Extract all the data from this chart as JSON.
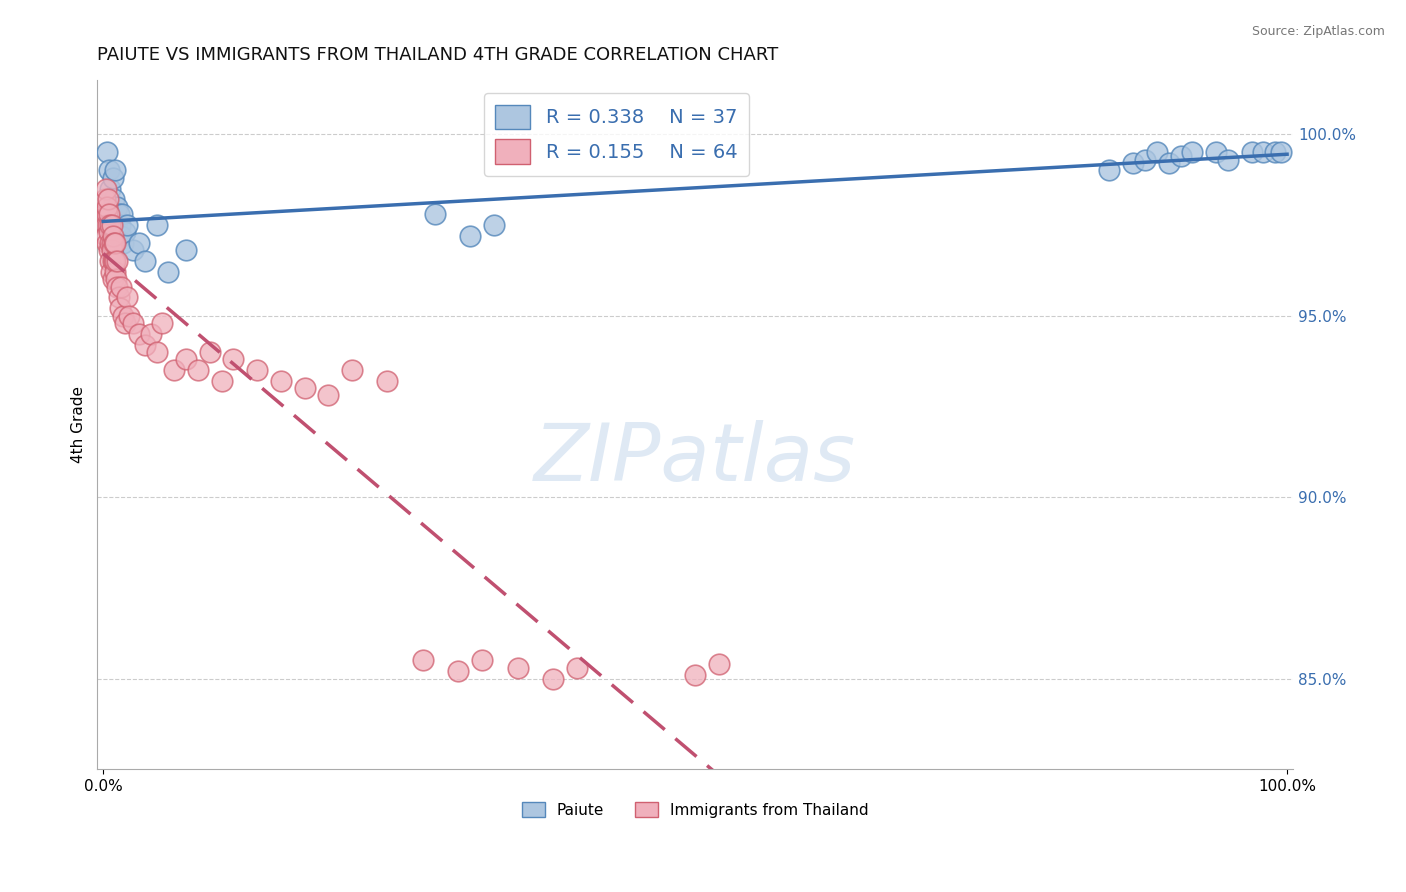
{
  "title": "PAIUTE VS IMMIGRANTS FROM THAILAND 4TH GRADE CORRELATION CHART",
  "source": "Source: ZipAtlas.com",
  "ylabel": "4th Grade",
  "watermark": "ZIPatlas",
  "blue_R": 0.338,
  "blue_N": 37,
  "pink_R": 0.155,
  "pink_N": 64,
  "blue_line_color": "#3a6eaf",
  "pink_line_color": "#c05070",
  "blue_scatter_face": "#adc6e0",
  "blue_scatter_edge": "#5588bb",
  "pink_scatter_face": "#f0b0bc",
  "pink_scatter_edge": "#d06070",
  "blue_points_x": [
    0.3,
    0.5,
    0.6,
    0.8,
    0.9,
    1.0,
    1.1,
    1.2,
    1.3,
    1.4,
    1.5,
    1.6,
    1.7,
    1.8,
    2.0,
    2.5,
    3.0,
    3.5,
    4.5,
    5.5,
    7.0,
    28.0,
    31.0,
    33.0,
    85.0,
    87.0,
    88.0,
    89.0,
    90.0,
    91.0,
    92.0,
    94.0,
    95.0,
    97.0,
    98.0,
    99.0,
    99.5
  ],
  "blue_points_y": [
    99.5,
    99.0,
    98.5,
    98.8,
    98.2,
    99.0,
    97.5,
    98.0,
    97.8,
    97.5,
    97.2,
    97.8,
    97.0,
    97.3,
    97.5,
    96.8,
    97.0,
    96.5,
    97.5,
    96.2,
    96.8,
    97.8,
    97.2,
    97.5,
    99.0,
    99.2,
    99.3,
    99.5,
    99.2,
    99.4,
    99.5,
    99.5,
    99.3,
    99.5,
    99.5,
    99.5,
    99.5
  ],
  "pink_points_x": [
    0.1,
    0.15,
    0.2,
    0.2,
    0.25,
    0.3,
    0.3,
    0.35,
    0.4,
    0.4,
    0.45,
    0.5,
    0.5,
    0.55,
    0.6,
    0.6,
    0.65,
    0.7,
    0.7,
    0.75,
    0.8,
    0.8,
    0.85,
    0.9,
    0.9,
    0.95,
    1.0,
    1.0,
    1.1,
    1.2,
    1.2,
    1.3,
    1.4,
    1.5,
    1.7,
    1.8,
    2.0,
    2.2,
    2.5,
    3.0,
    3.5,
    4.0,
    4.5,
    5.0,
    6.0,
    7.0,
    8.0,
    9.0,
    10.0,
    11.0,
    13.0,
    15.0,
    17.0,
    19.0,
    21.0,
    24.0,
    27.0,
    30.0,
    32.0,
    35.0,
    38.0,
    40.0,
    50.0,
    52.0
  ],
  "pink_points_y": [
    97.8,
    98.2,
    97.5,
    98.5,
    97.2,
    97.8,
    98.0,
    97.0,
    97.5,
    98.2,
    96.8,
    97.3,
    97.8,
    97.0,
    96.5,
    97.5,
    96.2,
    97.0,
    97.5,
    96.8,
    96.5,
    97.2,
    96.0,
    96.5,
    97.0,
    96.2,
    96.5,
    97.0,
    96.0,
    95.8,
    96.5,
    95.5,
    95.2,
    95.8,
    95.0,
    94.8,
    95.5,
    95.0,
    94.8,
    94.5,
    94.2,
    94.5,
    94.0,
    94.8,
    93.5,
    93.8,
    93.5,
    94.0,
    93.2,
    93.8,
    93.5,
    93.2,
    93.0,
    92.8,
    93.5,
    93.2,
    85.5,
    85.2,
    85.5,
    85.3,
    85.0,
    85.3,
    85.1,
    85.4
  ],
  "y_ticks": [
    85.0,
    90.0,
    95.0,
    100.0
  ],
  "y_tick_labels": [
    "85.0%",
    "90.0%",
    "95.0%",
    "100.0%"
  ],
  "legend_blue_label": "Paiute",
  "legend_pink_label": "Immigrants from Thailand",
  "background_color": "#ffffff",
  "grid_color": "#cccccc",
  "ylim_bottom": 82.5,
  "ylim_top": 101.5,
  "xlim_left": -0.5,
  "xlim_right": 100.5
}
